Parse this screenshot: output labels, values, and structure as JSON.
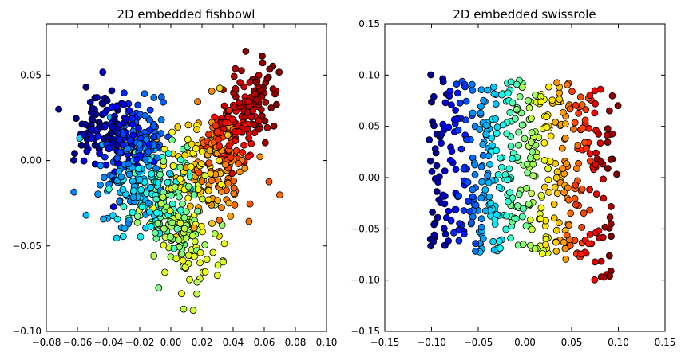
{
  "chart_data": [
    {
      "type": "scatter",
      "title": "2D embedded fishbowl",
      "xlabel": "",
      "ylabel": "",
      "xlim": [
        -0.08,
        0.1
      ],
      "ylim": [
        -0.1,
        0.08
      ],
      "xticks": [
        -0.08,
        -0.06,
        -0.04,
        -0.02,
        0.0,
        0.02,
        0.04,
        0.06,
        0.08,
        0.1
      ],
      "xtick_labels": [
        "−0.08",
        "−0.06",
        "−0.04",
        "−0.02",
        "0.00",
        "0.02",
        "0.04",
        "0.06",
        "0.08",
        "0.10"
      ],
      "yticks": [
        -0.1,
        -0.05,
        0.0,
        0.05
      ],
      "ytick_labels": [
        "−0.10",
        "−0.05",
        "0.00",
        "0.05"
      ],
      "grid": false,
      "colormap": "jet",
      "color_value": "normalized position along manifold (0 = blue, 1 = red)",
      "marker_edge": "#000000",
      "point_count": 900
    },
    {
      "type": "scatter",
      "title": "2D embedded swissrole",
      "xlabel": "",
      "ylabel": "",
      "xlim": [
        -0.15,
        0.15
      ],
      "ylim": [
        -0.15,
        0.15
      ],
      "xticks": [
        -0.15,
        -0.1,
        -0.05,
        0.0,
        0.05,
        0.1,
        0.15
      ],
      "xtick_labels": [
        "−0.15",
        "−0.10",
        "−0.05",
        "0.00",
        "0.05",
        "0.10",
        "0.15"
      ],
      "yticks": [
        -0.15,
        -0.1,
        -0.05,
        0.0,
        0.05,
        0.1,
        0.15
      ],
      "ytick_labels": [
        "−0.15",
        "−0.10",
        "−0.05",
        "0.00",
        "0.05",
        "0.10",
        "0.15"
      ],
      "grid": false,
      "colormap": "jet",
      "color_value": "normalized position along manifold (0 = blue, 1 = red)",
      "marker_edge": "#000000",
      "point_count": 520
    }
  ]
}
